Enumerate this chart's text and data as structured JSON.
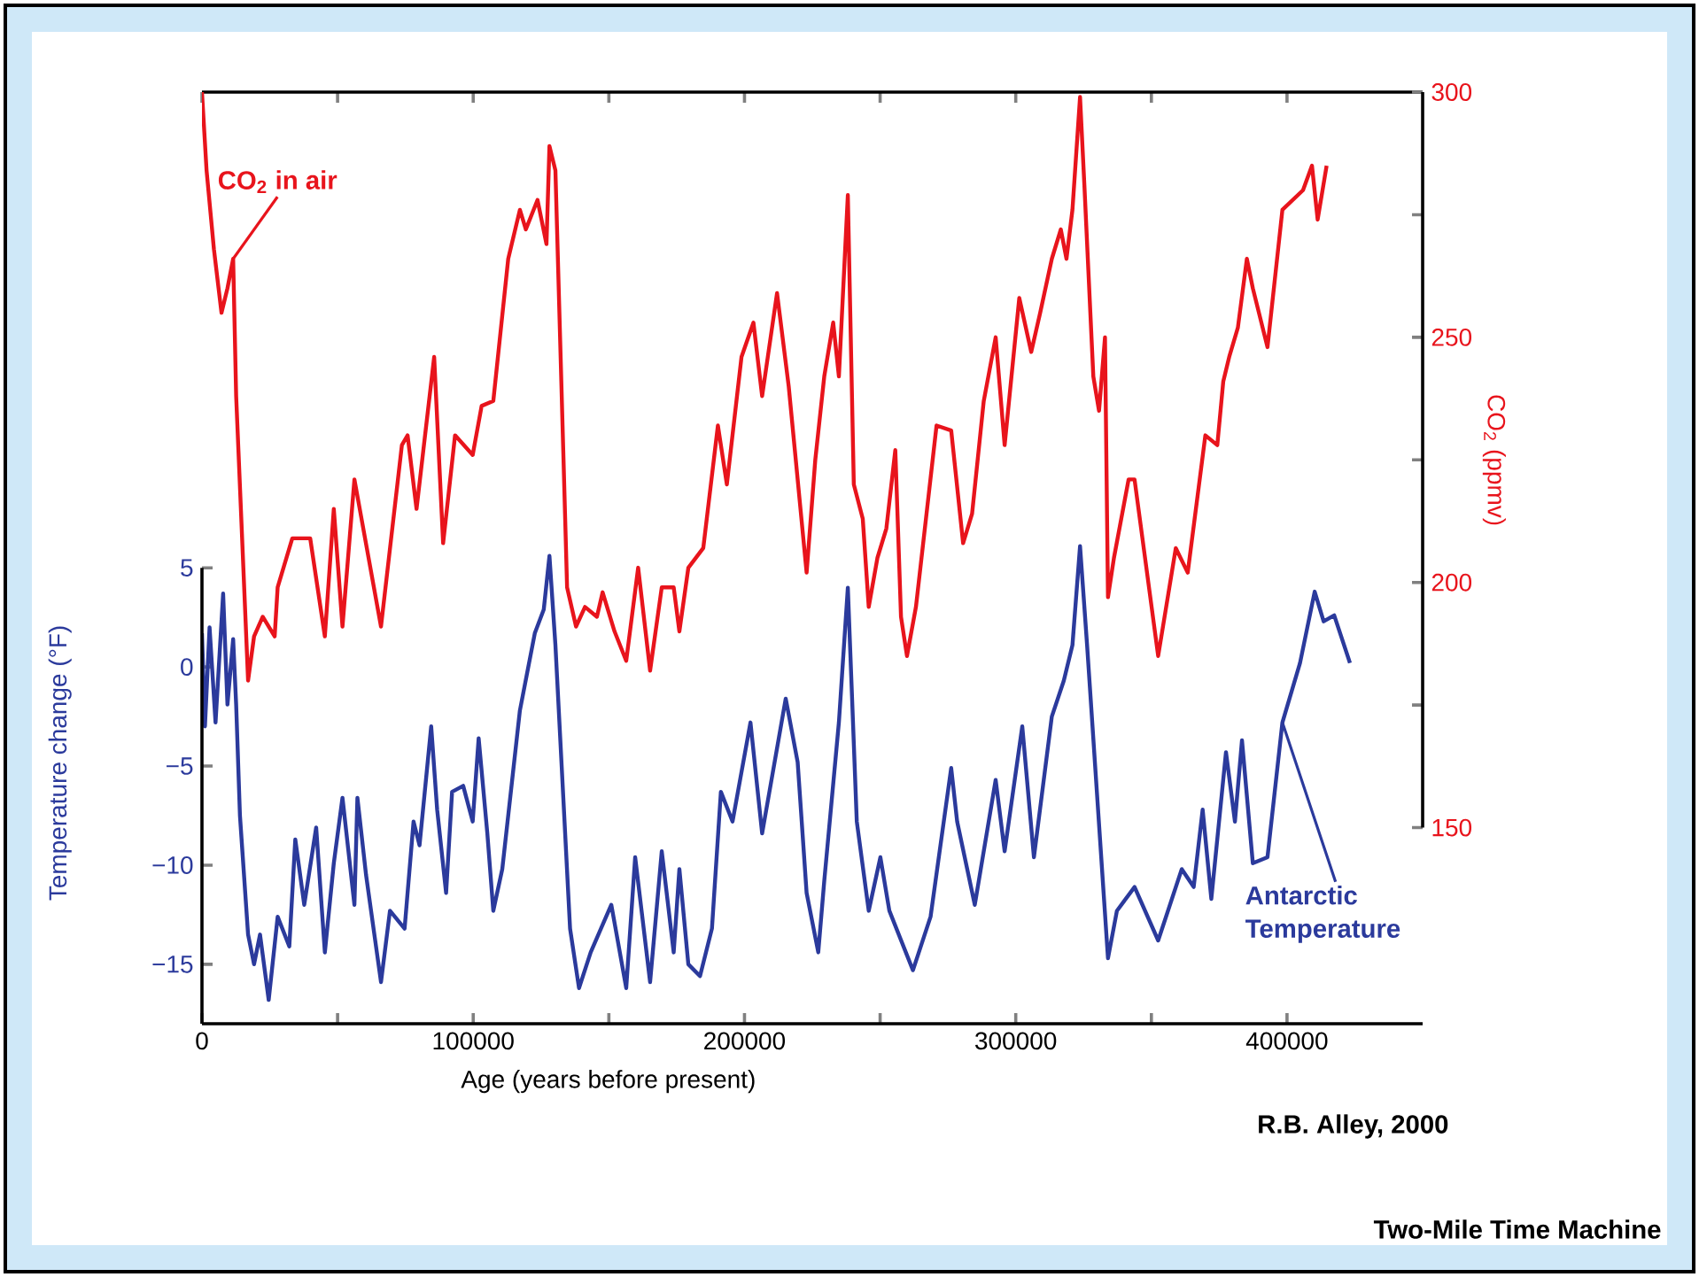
{
  "chart_data": {
    "type": "line",
    "xlabel": "Age (years before present)",
    "ylabel": "Temperature change (°F)",
    "y2label": "CO$_{2}$ (ppmv)",
    "xlim": [
      0,
      450000
    ],
    "xticks": [
      0,
      {
        "value": 50000,
        "label": null
      },
      100000,
      {
        "value": 150000,
        "label": null
      },
      200000,
      {
        "value": 250000,
        "label": null
      },
      300000,
      {
        "value": 350000,
        "label": null
      },
      400000
    ],
    "ylim": [
      -18,
      29
    ],
    "yticks": [
      {
        "value": -15,
        "label": "−15"
      },
      {
        "value": -10,
        "label": "−10"
      },
      {
        "value": -5,
        "label": "−5"
      },
      0,
      5
    ],
    "y2lim": [
      110,
      300
    ],
    "y2ticks": [
      150,
      {
        "value": 175,
        "label": null
      },
      200,
      {
        "value": 225,
        "label": null
      },
      250,
      {
        "value": 275,
        "label": null
      },
      300
    ],
    "series": [
      {
        "name": "CO$_{2}$ in air",
        "color": "#e8141c",
        "axis": "y2",
        "x": [
          0,
          1700,
          4400,
          7200,
          9400,
          11500,
          12600,
          17000,
          19200,
          22400,
          26800,
          27900,
          33300,
          39900,
          45300,
          48600,
          51800,
          56200,
          66000,
          73700,
          75800,
          79100,
          85600,
          88900,
          93300,
          99800,
          103100,
          107400,
          112900,
          117200,
          119400,
          123700,
          127000,
          128100,
          130300,
          134600,
          137900,
          141200,
          145600,
          147700,
          152100,
          156400,
          160800,
          165200,
          169500,
          173900,
          176000,
          179300,
          184800,
          190200,
          193500,
          198900,
          203300,
          206500,
          212000,
          216300,
          222900,
          226100,
          229400,
          232700,
          234800,
          238100,
          240300,
          243600,
          245800,
          249000,
          252300,
          255600,
          257700,
          259900,
          263200,
          270800,
          276200,
          280600,
          283900,
          288200,
          292600,
          295900,
          301300,
          305700,
          309000,
          313300,
          316600,
          318700,
          320900,
          323700,
          325300,
          328600,
          330700,
          332900,
          334000,
          336200,
          341600,
          343800,
          352500,
          359000,
          363400,
          369900,
          374300,
          376500,
          378700,
          381900,
          385200,
          387400,
          392800,
          398300,
          405900,
          409200,
          411300,
          414600
        ],
        "values": [
          300,
          284,
          268,
          255,
          260,
          266,
          238,
          180,
          189,
          193,
          189,
          199,
          209,
          209,
          189,
          215,
          191,
          221,
          191,
          228,
          230,
          215,
          246,
          208,
          230,
          226,
          236,
          237,
          266,
          276,
          272,
          278,
          269,
          289,
          284,
          199,
          191,
          195,
          193,
          198,
          190,
          184,
          203,
          182,
          199,
          199,
          190,
          203,
          207,
          232,
          220,
          246,
          253,
          238,
          259,
          240,
          202,
          225,
          242,
          253,
          242,
          279,
          220,
          213,
          195,
          205,
          211,
          227,
          193,
          185,
          195,
          232,
          231,
          208,
          214,
          237,
          250,
          228,
          258,
          247,
          255,
          266,
          272,
          266,
          276,
          299,
          281,
          242,
          235,
          250,
          197,
          205,
          221,
          221,
          185,
          207,
          202,
          230,
          228,
          241,
          246,
          252,
          266,
          260,
          248,
          276,
          280,
          285,
          274,
          285
        ]
      },
      {
        "name": "Antarctic Temperature",
        "color": "#2b3a9c",
        "x": [
          0,
          1100,
          2800,
          5000,
          7800,
          9400,
          11500,
          12600,
          14000,
          17000,
          19200,
          21400,
          24600,
          27900,
          32200,
          34400,
          37700,
          42100,
          45300,
          48600,
          51800,
          56200,
          57300,
          60500,
          66000,
          69300,
          74700,
          78000,
          80200,
          84500,
          86700,
          90000,
          92200,
          96300,
          99800,
          102000,
          105200,
          107400,
          110700,
          117200,
          122700,
          126000,
          128100,
          130300,
          135700,
          139000,
          143300,
          150900,
          156400,
          159700,
          165200,
          169500,
          173900,
          176000,
          179300,
          183600,
          188000,
          191300,
          195600,
          202200,
          206500,
          215200,
          219600,
          222900,
          227200,
          229400,
          234800,
          238100,
          241400,
          245800,
          250100,
          253400,
          262100,
          268600,
          276200,
          278400,
          284900,
          287100,
          292600,
          295900,
          302400,
          306700,
          313300,
          317700,
          320900,
          323700,
          326300,
          334000,
          337300,
          343800,
          352500,
          361200,
          365600,
          368900,
          372100,
          377500,
          380800,
          383400,
          387400,
          392800,
          398300,
          404800,
          410200,
          413500,
          417400,
          423200
        ],
        "values": [
          1.7,
          -3.0,
          2.0,
          -2.8,
          3.7,
          -1.9,
          1.4,
          -1.9,
          -7.5,
          -13.5,
          -15.0,
          -13.5,
          -16.8,
          -12.6,
          -14.1,
          -8.7,
          -12.0,
          -8.1,
          -14.4,
          -9.9,
          -6.6,
          -12.0,
          -6.6,
          -10.5,
          -15.9,
          -12.3,
          -13.2,
          -7.8,
          -9.0,
          -3.0,
          -7.2,
          -11.4,
          -6.3,
          -6.0,
          -7.8,
          -3.6,
          -8.4,
          -12.3,
          -10.2,
          -2.2,
          1.7,
          2.9,
          5.6,
          1.1,
          -13.2,
          -16.2,
          -14.4,
          -12.0,
          -16.2,
          -9.6,
          -15.9,
          -9.3,
          -14.4,
          -10.2,
          -15.0,
          -15.6,
          -13.2,
          -6.3,
          -7.8,
          -2.8,
          -8.4,
          -1.6,
          -4.8,
          -11.4,
          -14.4,
          -10.8,
          -2.8,
          4.0,
          -7.8,
          -12.3,
          -9.6,
          -12.3,
          -15.3,
          -12.6,
          -5.1,
          -7.8,
          -12.0,
          -10.2,
          -5.7,
          -9.3,
          -3.0,
          -9.6,
          -2.5,
          -0.7,
          1.1,
          6.1,
          1.1,
          -14.7,
          -12.3,
          -11.1,
          -13.8,
          -10.2,
          -11.1,
          -7.2,
          -11.7,
          -4.3,
          -7.8,
          -3.7,
          -9.9,
          -9.6,
          -2.8,
          0.2,
          3.8,
          2.3,
          2.6,
          0.2
        ]
      }
    ],
    "annotations": [
      "R.B. Alley, 2000",
      "Two-Mile Time Machine"
    ]
  }
}
